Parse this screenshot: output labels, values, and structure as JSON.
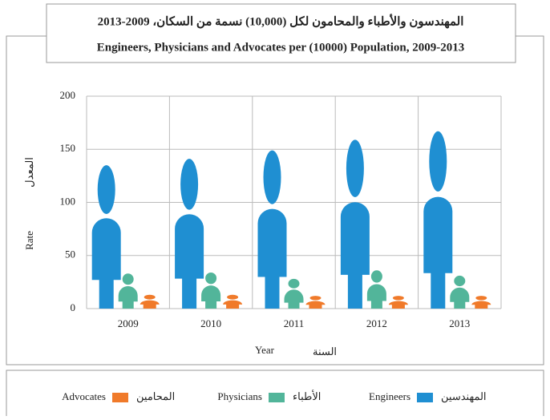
{
  "chart_data": {
    "type": "pictograph",
    "title": "المهندسون والأطباء والمحامون لكل (10,000) نسمة من السكان، 2009-2013",
    "subtitle": "Engineers, Physicians and Advocates per (10000) Population, 2009-2013",
    "y_label": "Rate",
    "y_label_ar": "المعدل",
    "x_label": "Year",
    "x_label_ar": "السنة",
    "categories": [
      "2009",
      "2010",
      "2011",
      "2012",
      "2013"
    ],
    "series": [
      {
        "name": "Engineers",
        "name_ar": "المهندسين",
        "color": "#1f8fd2",
        "values": [
          135,
          141,
          149,
          159,
          167
        ]
      },
      {
        "name": "Physicians",
        "name_ar": "الأطباء",
        "color": "#52b59a",
        "values": [
          33,
          34,
          28,
          36,
          31
        ]
      },
      {
        "name": "Advocates",
        "name_ar": "المحامين",
        "color": "#f07a2a",
        "values": [
          13,
          13,
          12,
          12,
          12
        ]
      }
    ],
    "ylim": [
      0,
      200
    ],
    "yticks": [
      0,
      50,
      100,
      150,
      200
    ],
    "grid": true
  }
}
